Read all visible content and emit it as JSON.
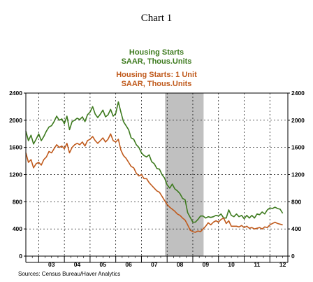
{
  "chart_data": {
    "type": "line",
    "title": "Chart 1",
    "source": "Sources: Census Bureau/Haver Analytics",
    "y_ticks": [
      0,
      400,
      800,
      1200,
      1600,
      2000,
      2400
    ],
    "ylim": [
      0,
      2400
    ],
    "x_labels": [
      "03",
      "04",
      "05",
      "06",
      "07",
      "08",
      "09",
      "10",
      "11",
      "12"
    ],
    "xlim": [
      2002.5,
      2012.7
    ],
    "grid": true,
    "recession": {
      "start": 2007.92,
      "end": 2009.42,
      "color": "#c0c0c0"
    },
    "series": [
      {
        "name": "Housing Starts",
        "units": "SAAR, Thous.Units",
        "color": "#3d7a1e",
        "x": [
          2002.5,
          2002.6,
          2002.7,
          2002.8,
          2002.9,
          2003.0,
          2003.1,
          2003.2,
          2003.3,
          2003.4,
          2003.5,
          2003.6,
          2003.7,
          2003.8,
          2003.9,
          2004.0,
          2004.1,
          2004.2,
          2004.3,
          2004.4,
          2004.5,
          2004.6,
          2004.7,
          2004.8,
          2004.9,
          2005.0,
          2005.1,
          2005.2,
          2005.3,
          2005.4,
          2005.5,
          2005.6,
          2005.7,
          2005.8,
          2005.9,
          2006.0,
          2006.1,
          2006.2,
          2006.3,
          2006.4,
          2006.5,
          2006.6,
          2006.7,
          2006.8,
          2006.9,
          2007.0,
          2007.1,
          2007.2,
          2007.3,
          2007.4,
          2007.5,
          2007.6,
          2007.7,
          2007.8,
          2007.9,
          2008.0,
          2008.1,
          2008.2,
          2008.3,
          2008.4,
          2008.5,
          2008.6,
          2008.7,
          2008.8,
          2008.9,
          2009.0,
          2009.1,
          2009.2,
          2009.3,
          2009.4,
          2009.5,
          2009.6,
          2009.7,
          2009.8,
          2009.9,
          2010.0,
          2010.1,
          2010.2,
          2010.3,
          2010.4,
          2010.5,
          2010.6,
          2010.7,
          2010.8,
          2010.9,
          2011.0,
          2011.1,
          2011.2,
          2011.3,
          2011.4,
          2011.5,
          2011.6,
          2011.7,
          2011.8,
          2011.9,
          2012.0,
          2012.1,
          2012.2,
          2012.3,
          2012.4,
          2012.5
        ],
        "values": [
          1840,
          1700,
          1780,
          1650,
          1720,
          1800,
          1700,
          1760,
          1840,
          1900,
          1920,
          1980,
          2060,
          2000,
          2020,
          1950,
          2060,
          1860,
          1980,
          2000,
          2030,
          2010,
          2050,
          1980,
          2080,
          2120,
          2200,
          2090,
          2040,
          2090,
          2150,
          2050,
          2080,
          2160,
          2060,
          2100,
          2270,
          2120,
          1980,
          1920,
          1860,
          1740,
          1720,
          1640,
          1600,
          1520,
          1480,
          1460,
          1490,
          1390,
          1360,
          1290,
          1280,
          1200,
          1150,
          1050,
          1000,
          1060,
          990,
          960,
          920,
          850,
          830,
          640,
          570,
          500,
          500,
          540,
          590,
          590,
          560,
          580,
          570,
          580,
          600,
          590,
          620,
          560,
          560,
          680,
          600,
          580,
          620,
          580,
          600,
          550,
          600,
          560,
          600,
          560,
          620,
          610,
          650,
          620,
          680,
          710,
          700,
          720,
          700,
          690,
          630
        ]
      },
      {
        "name": "Housing Starts: 1 Unit",
        "units": "SAAR, Thous.Units",
        "color": "#c05a1c",
        "x": [
          2002.5,
          2002.6,
          2002.7,
          2002.8,
          2002.9,
          2003.0,
          2003.1,
          2003.2,
          2003.3,
          2003.4,
          2003.5,
          2003.6,
          2003.7,
          2003.8,
          2003.9,
          2004.0,
          2004.1,
          2004.2,
          2004.3,
          2004.4,
          2004.5,
          2004.6,
          2004.7,
          2004.8,
          2004.9,
          2005.0,
          2005.1,
          2005.2,
          2005.3,
          2005.4,
          2005.5,
          2005.6,
          2005.7,
          2005.8,
          2005.9,
          2006.0,
          2006.1,
          2006.2,
          2006.3,
          2006.4,
          2006.5,
          2006.6,
          2006.7,
          2006.8,
          2006.9,
          2007.0,
          2007.1,
          2007.2,
          2007.3,
          2007.4,
          2007.5,
          2007.6,
          2007.7,
          2007.8,
          2007.9,
          2008.0,
          2008.1,
          2008.2,
          2008.3,
          2008.4,
          2008.5,
          2008.6,
          2008.7,
          2008.8,
          2008.9,
          2009.0,
          2009.1,
          2009.2,
          2009.3,
          2009.4,
          2009.5,
          2009.6,
          2009.7,
          2009.8,
          2009.9,
          2010.0,
          2010.1,
          2010.2,
          2010.3,
          2010.4,
          2010.5,
          2010.6,
          2010.7,
          2010.8,
          2010.9,
          2011.0,
          2011.1,
          2011.2,
          2011.3,
          2011.4,
          2011.5,
          2011.6,
          2011.7,
          2011.8,
          2011.9,
          2012.0,
          2012.1,
          2012.2,
          2012.3,
          2012.4,
          2012.5
        ],
        "values": [
          1520,
          1380,
          1420,
          1300,
          1360,
          1380,
          1340,
          1420,
          1460,
          1540,
          1520,
          1580,
          1640,
          1600,
          1620,
          1580,
          1660,
          1520,
          1600,
          1640,
          1660,
          1640,
          1680,
          1620,
          1700,
          1720,
          1760,
          1700,
          1660,
          1700,
          1740,
          1680,
          1720,
          1800,
          1700,
          1680,
          1720,
          1560,
          1480,
          1440,
          1380,
          1320,
          1300,
          1220,
          1180,
          1200,
          1140,
          1140,
          1080,
          1040,
          1000,
          960,
          940,
          880,
          820,
          760,
          720,
          690,
          660,
          620,
          600,
          560,
          530,
          460,
          380,
          360,
          350,
          370,
          360,
          400,
          440,
          490,
          460,
          500,
          520,
          500,
          540,
          560,
          480,
          520,
          440,
          440,
          440,
          430,
          450,
          420,
          440,
          410,
          420,
          400,
          410,
          420,
          400,
          430,
          420,
          460,
          480,
          500,
          480,
          470,
          460
        ]
      }
    ]
  }
}
